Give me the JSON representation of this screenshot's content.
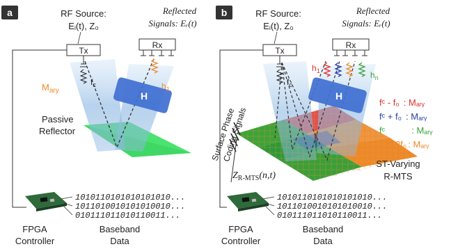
{
  "panel_a": {
    "label": "a",
    "rf_source": "RF Source:",
    "rf_source_eq": "Eᵢ(t), Z₀",
    "tx": "Tx",
    "reflected": "Reflected",
    "signals": "Signals: Eᵣ(t)",
    "rx": "Rx",
    "fc": "f",
    "fc_sub": "c",
    "h1": "h",
    "h1_sub": "1",
    "mary": "M",
    "mary_sub": "ary",
    "h_block": "H",
    "reflector_line1": "Passive",
    "reflector_line2": "Reflector",
    "fpga_line1": "FPGA",
    "fpga_line2": "Controller",
    "baseband_line1": "Baseband",
    "baseband_line2": "Data",
    "bits": [
      "1010110101010101010...",
      "1011010010101010010...",
      "010111011010110011..."
    ]
  },
  "panel_b": {
    "label": "b",
    "rf_source": "RF Source:",
    "rf_source_eq": "Eᵢ(t), Z₀",
    "tx": "Tx",
    "reflected": "Reflected",
    "signals": "Signals: Eᵣ(t)",
    "rx": "Rx",
    "fc": "f",
    "fc_sub": "c",
    "h1": "h",
    "h1_sub": "1",
    "hn": "h",
    "hn_sub": "n",
    "h_block": "H",
    "surface_line1": "Surface Phase",
    "surface_line2": "Coding Signals",
    "z_label": "Z",
    "z_sub": "R-MTS",
    "z_args": "(n,t)",
    "st_line1": "ST-Varying",
    "st_line2": "R-MTS",
    "freq_list": [
      {
        "text": "fᶜ - f₀",
        "m": "Mₐᵣᵧ",
        "color": "#e0302a"
      },
      {
        "text": "fᶜ + f₀",
        "m": "Mₐᵣᵧ",
        "color": "#2a3fa8"
      },
      {
        "text": "fᶜ",
        "m": "Mₐᵣᵧ",
        "color": "#3aa43a"
      },
      {
        "text": "fᶜ + 2f₀",
        "m": "Mₐᵣᵧ",
        "color": "#f08a2a"
      }
    ],
    "fpga_line1": "FPGA",
    "fpga_line2": "Controller",
    "baseband_line1": "Baseband",
    "baseband_line2": "Data",
    "bits": [
      "1010110101010101010...",
      "1011010010101010010...",
      "010111011010110011..."
    ]
  },
  "colors": {
    "beam": "#9fc3e6",
    "h_block": "#3f6fd1",
    "reflector": "#37e060",
    "orange": "#f08a2a",
    "red": "#e0302a",
    "blue": "#2a3fa8",
    "green": "#3aa43a"
  }
}
